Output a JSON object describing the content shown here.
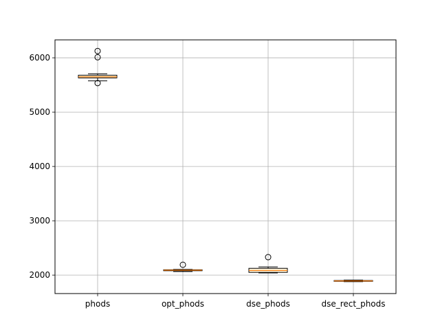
{
  "chart_data": {
    "type": "box",
    "categories": [
      "phods",
      "opt_phods",
      "dse_phods",
      "dse_rect_phods"
    ],
    "boxes": [
      {
        "name": "phods",
        "whisker_low": 5575,
        "q1": 5630,
        "median": 5650,
        "q3": 5680,
        "whisker_high": 5705,
        "outliers": [
          6125,
          6010,
          5535
        ]
      },
      {
        "name": "opt_phods",
        "whisker_low": 2065,
        "q1": 2080,
        "median": 2090,
        "q3": 2098,
        "whisker_high": 2105,
        "outliers": [
          2190
        ]
      },
      {
        "name": "dse_phods",
        "whisker_low": 2040,
        "q1": 2050,
        "median": 2085,
        "q3": 2125,
        "whisker_high": 2150,
        "outliers": [
          2330
        ]
      },
      {
        "name": "dse_rect_phods",
        "whisker_low": 1878,
        "q1": 1885,
        "median": 1893,
        "q3": 1900,
        "whisker_high": 1908,
        "outliers": []
      }
    ],
    "y_ticks": [
      2000,
      3000,
      4000,
      5000,
      6000
    ],
    "ylim": [
      1660,
      6330
    ],
    "grid": true,
    "colors": {
      "box": "#fff3d9",
      "median": "#ff7f0e",
      "grid": "#b0b0b0",
      "axis": "#000000"
    }
  }
}
